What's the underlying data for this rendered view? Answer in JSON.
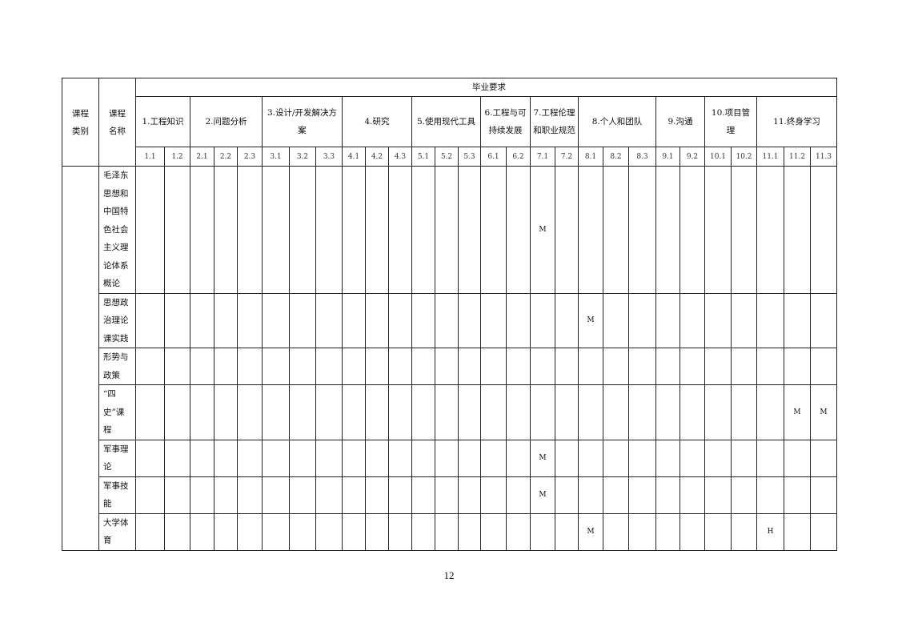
{
  "table": {
    "header": {
      "category_label": [
        "课程",
        "类别"
      ],
      "name_label": [
        "课程",
        "名称"
      ],
      "requirements_title": "毕业要求",
      "groups": [
        {
          "label": "1.工程知识",
          "subs": [
            "1.1",
            "1.2"
          ]
        },
        {
          "label": "2.问题分析",
          "subs": [
            "2.1",
            "2.2",
            "2.3"
          ]
        },
        {
          "label": "3.设计/开发解决方案",
          "subs": [
            "3.1",
            "3.2",
            "3.3"
          ]
        },
        {
          "label": "4.研究",
          "subs": [
            "4.1",
            "4.2",
            "4.3"
          ]
        },
        {
          "label": "5.使用现代工具",
          "subs": [
            "5.1",
            "5.2",
            "5.3"
          ]
        },
        {
          "label": "6.工程与可持续发展",
          "subs": [
            "6.1",
            "6.2"
          ]
        },
        {
          "label": "7.工程伦理和职业规范",
          "subs": [
            "7.1",
            "7.2"
          ]
        },
        {
          "label": "8.个人和团队",
          "subs": [
            "8.1",
            "8.2",
            "8.3"
          ]
        },
        {
          "label": "9.沟通",
          "subs": [
            "9.1",
            "9.2"
          ]
        },
        {
          "label": "10.项目管理",
          "subs": [
            "10.1",
            "10.2"
          ]
        },
        {
          "label": "11.终身学习",
          "subs": [
            "11.1",
            "11.2",
            "11.3"
          ]
        }
      ]
    },
    "category": "",
    "rows": [
      {
        "name": [
          "毛泽东",
          "思想和",
          "中国特",
          "色社会",
          "主义理",
          "论体系",
          "概论"
        ],
        "marks": {
          "7.1": "M"
        }
      },
      {
        "name": [
          "思想政",
          "治理论",
          "课实践"
        ],
        "marks": {
          "8.1": "M"
        }
      },
      {
        "name": [
          "形势与",
          "政策"
        ],
        "marks": {}
      },
      {
        "name": [
          "“四",
          "史”课",
          "程"
        ],
        "marks": {
          "11.2": "M",
          "11.3": "M"
        }
      },
      {
        "name": [
          "军事理",
          "论"
        ],
        "marks": {
          "7.1": "M"
        }
      },
      {
        "name": [
          "军事技",
          "能"
        ],
        "marks": {
          "7.1": "M"
        }
      },
      {
        "name": [
          "大学体",
          "育"
        ],
        "marks": {
          "8.1": "M",
          "11.1": "H"
        }
      }
    ]
  },
  "page_number": "12"
}
